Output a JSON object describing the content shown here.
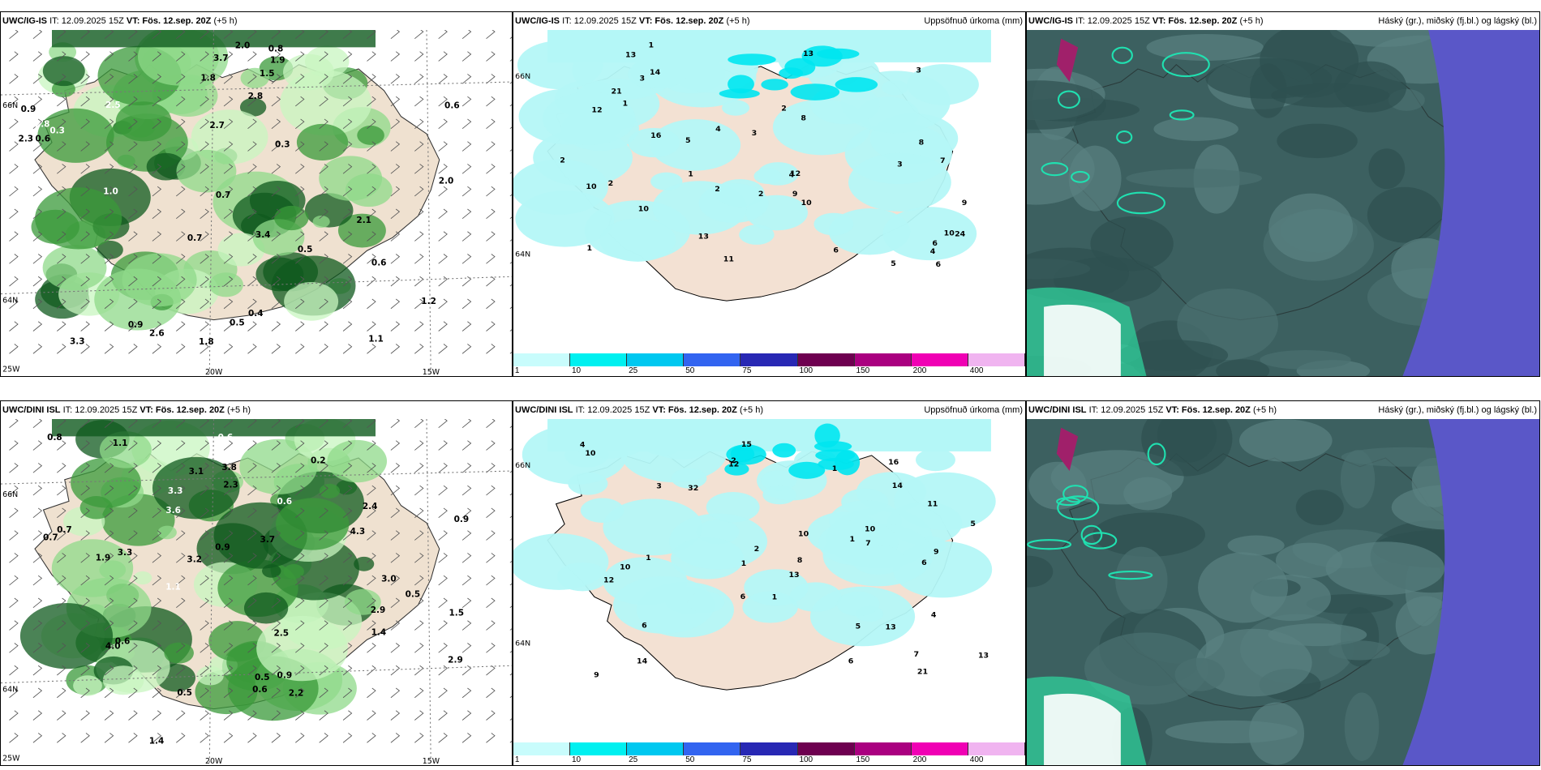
{
  "panels": [
    {
      "id": "top-left",
      "model": "UWC/IG-IS",
      "it": "IT: 12.09.2025 15Z",
      "vt_label": "VT: Fös. 12.sep. 20Z",
      "offset": "(+5 h)",
      "right_title": "",
      "lat_labels": [
        "66N",
        "64N"
      ],
      "lon_labels": [
        "25W",
        "20W",
        "15W"
      ],
      "values": [
        "2.5",
        "2.3",
        "2.6",
        "2.1",
        "2.0",
        "1.8",
        "2.7",
        "1.0",
        "2.8",
        "3.4",
        "3.7",
        "2.0",
        "1.8",
        "1.9",
        "2.8",
        "0.7",
        "1.2",
        "3.3",
        "1.1",
        "0.6",
        "0.4",
        "0.5",
        "0.8",
        "0.3",
        "0.9",
        "1.5",
        "0.5",
        "0.6",
        "0.3",
        "0.9",
        "0.7",
        "0.5",
        "0.6"
      ]
    },
    {
      "id": "top-middle",
      "model": "UWC/IG-IS",
      "it": "IT: 12.09.2025 15Z",
      "vt_label": "VT: Fös. 12.sep. 20Z",
      "offset": "(+5 h)",
      "right_title": "Uppsöfnuð úrkoma (mm)",
      "lat_labels": [
        "66N",
        "64N"
      ],
      "values": [
        "2",
        "3",
        "3",
        "10",
        "13",
        "9",
        "5",
        "3",
        "2",
        "24",
        "14",
        "12",
        "12",
        "8",
        "13",
        "21",
        "13",
        "16",
        "11",
        "10",
        "9",
        "10",
        "7",
        "6",
        "6",
        "4",
        "8",
        "5",
        "3",
        "2",
        "1",
        "2",
        "6",
        "4",
        "10",
        "4",
        "1",
        "2",
        "1",
        "1"
      ],
      "colorbar": {
        "ticks": [
          "1",
          "10",
          "25",
          "50",
          "75",
          "100",
          "150",
          "200",
          "400"
        ],
        "colors": [
          "#c8fcfc",
          "#00f0f0",
          "#00c8f0",
          "#3264f0",
          "#2828b4",
          "#6e0050",
          "#aa0080",
          "#f000b4",
          "#f0b4f0"
        ]
      }
    },
    {
      "id": "top-right",
      "model": "UWC/IG-IS",
      "it": "IT: 12.09.2025 15Z",
      "vt_label": "VT: Fös. 12.sep. 20Z",
      "offset": "(+5 h)",
      "right_title": "Háský (gr.), miðský (fj.bl.) og lágský (bl.)"
    },
    {
      "id": "bottom-left",
      "model": "UWC/DINI ISL",
      "it": "IT: 12.09.2025 15Z",
      "vt_label": "VT: Fös. 12.sep. 20Z",
      "offset": "(+5 h)",
      "right_title": "",
      "lat_labels": [
        "66N",
        "64N"
      ],
      "lon_labels": [
        "25W",
        "20W",
        "15W"
      ],
      "values": [
        "2.4",
        "2.9",
        "2.9",
        "3.1",
        "3.2",
        "2.2",
        "4.0",
        "3.3",
        "4.3",
        "2.4",
        "1.9",
        "3.7",
        "3.8",
        "3.3",
        "3.6",
        "2.5",
        "3.0",
        "0.9",
        "2.3",
        "1.4",
        "1.1",
        "0.6",
        "0.9",
        "1.5",
        "0.5",
        "0.6",
        "0.7",
        "0.8",
        "1.1",
        "1.4",
        "0.5",
        "0.2",
        "0.6",
        "0.7",
        "0.5",
        "0.6",
        "0.9"
      ]
    },
    {
      "id": "bottom-middle",
      "model": "UWC/DINI ISL",
      "it": "IT: 12.09.2025 15Z",
      "vt_label": "VT: Fös. 12.sep. 20Z",
      "offset": "(+5 h)",
      "right_title": "Uppsöfnuð úrkoma (mm)",
      "lat_labels": [
        "66N",
        "64N"
      ],
      "values": [
        "1",
        "6",
        "6",
        "10",
        "32",
        "14",
        "15",
        "13",
        "10",
        "5",
        "13",
        "12",
        "21",
        "13",
        "16",
        "14",
        "12",
        "11",
        "9",
        "10",
        "7",
        "9",
        "8",
        "6",
        "4",
        "5",
        "10",
        "2",
        "1",
        "3",
        "7",
        "4",
        "1",
        "2",
        "1",
        "6",
        "1"
      ],
      "colorbar": {
        "ticks": [
          "1",
          "10",
          "25",
          "50",
          "75",
          "100",
          "150",
          "200",
          "400"
        ],
        "colors": [
          "#c8fcfc",
          "#00f0f0",
          "#00c8f0",
          "#3264f0",
          "#2828b4",
          "#6e0050",
          "#aa0080",
          "#f000b4",
          "#f0b4f0"
        ]
      }
    },
    {
      "id": "bottom-right",
      "model": "UWC/DINI ISL",
      "it": "IT: 12.09.2025 15Z",
      "vt_label": "VT: Fös. 12.sep. 20Z",
      "offset": "(+5 h)",
      "right_title": "Háský (gr.), miðský (fj.bl.) og lágský (bl.)"
    }
  ]
}
